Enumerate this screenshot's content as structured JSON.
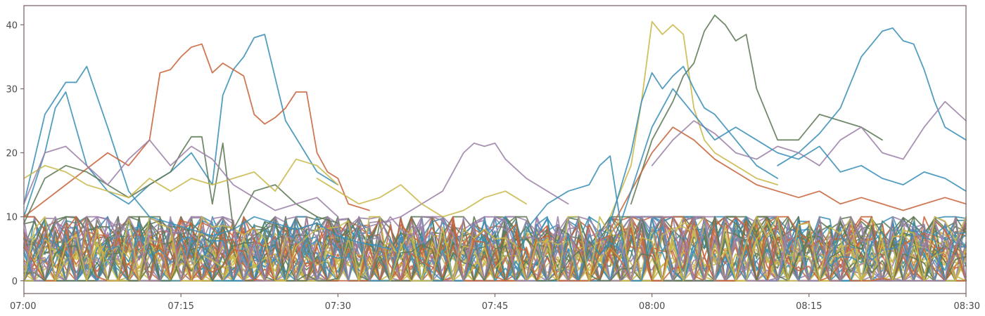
{
  "chart_data": {
    "type": "line",
    "title": "",
    "xlabel": "",
    "ylabel": "",
    "x_unit": "time (HH:MM)",
    "x_range": [
      "07:00",
      "08:30"
    ],
    "ylim": [
      -2,
      43
    ],
    "grid": false,
    "legend": "none",
    "x_ticks": [
      "07:00",
      "07:15",
      "07:30",
      "07:45",
      "08:00",
      "08:15",
      "08:30"
    ],
    "y_ticks": [
      0,
      10,
      20,
      30,
      40
    ],
    "colors": {
      "blue": "#3a8fb7",
      "orange": "#c8643a",
      "olive": "#5f7a55",
      "yellow": "#c9b84a",
      "purple": "#9c82a8",
      "axis": "#7f6a6a"
    },
    "background_noise": {
      "description_count": 55,
      "range": [
        0,
        10
      ]
    },
    "series": [
      {
        "color": "blue",
        "x": [
          "07:00",
          "07:02",
          "07:04",
          "07:05",
          "07:06",
          "07:08",
          "07:10",
          "07:12",
          "07:14",
          "07:16",
          "07:18",
          "07:20",
          "07:22",
          "07:24",
          "07:26",
          "07:28",
          "07:30",
          "07:32",
          "07:35"
        ],
        "values": [
          12,
          26,
          31,
          31,
          33.5,
          24,
          14,
          10,
          9,
          8,
          7,
          8,
          10,
          9,
          8,
          9,
          7,
          6,
          5
        ]
      },
      {
        "color": "blue",
        "x": [
          "07:00",
          "07:02",
          "07:03",
          "07:04",
          "07:06",
          "07:08",
          "07:10",
          "07:12",
          "07:14",
          "07:16",
          "07:18",
          "07:19",
          "07:20",
          "07:21",
          "07:22",
          "07:23",
          "07:25",
          "07:28",
          "07:30"
        ],
        "values": [
          10,
          20,
          27,
          29.5,
          18,
          14,
          12,
          15,
          17,
          20,
          15,
          29,
          33,
          35,
          38,
          38.5,
          25,
          17,
          15
        ]
      },
      {
        "color": "orange",
        "x": [
          "07:00",
          "07:04",
          "07:08",
          "07:10",
          "07:12",
          "07:13",
          "07:14",
          "07:15",
          "07:16",
          "07:17",
          "07:18",
          "07:19",
          "07:20",
          "07:21",
          "07:22",
          "07:23",
          "07:24",
          "07:25",
          "07:26",
          "07:27",
          "07:28",
          "07:29",
          "07:30",
          "07:31",
          "07:33"
        ],
        "values": [
          10,
          15,
          20,
          18,
          22,
          32.5,
          33,
          35,
          36.5,
          37,
          32.5,
          34,
          33,
          32,
          26,
          24.5,
          25.5,
          27,
          29.5,
          29.5,
          20,
          17,
          16,
          12,
          11
        ]
      },
      {
        "color": "purple",
        "x": [
          "07:32",
          "07:34",
          "07:36",
          "07:38",
          "07:40",
          "07:42",
          "07:43",
          "07:44",
          "07:45",
          "07:46",
          "07:48",
          "07:50",
          "07:52"
        ],
        "values": [
          8,
          9,
          10,
          12,
          14,
          20,
          21.5,
          21,
          21.5,
          19,
          16,
          14,
          12
        ]
      },
      {
        "color": "yellow",
        "x": [
          "07:28",
          "07:30",
          "07:32",
          "07:34",
          "07:36",
          "07:38",
          "07:40",
          "07:42",
          "07:44",
          "07:46",
          "07:48"
        ],
        "values": [
          16,
          14,
          12,
          13,
          15,
          12,
          10,
          11,
          13,
          14,
          12
        ]
      },
      {
        "color": "yellow",
        "x": [
          "07:56",
          "07:58",
          "07:59",
          "08:00",
          "08:01",
          "08:02",
          "08:03",
          "08:04",
          "08:05",
          "08:06",
          "08:08",
          "08:10",
          "08:12"
        ],
        "values": [
          10,
          18,
          28,
          40.5,
          38.5,
          40,
          38.5,
          27,
          22,
          20,
          18,
          16,
          15
        ]
      },
      {
        "color": "olive",
        "x": [
          "07:58",
          "08:00",
          "08:02",
          "08:03",
          "08:04",
          "08:05",
          "08:06",
          "08:07",
          "08:08",
          "08:09",
          "08:10",
          "08:12",
          "08:14",
          "08:16",
          "08:18",
          "08:20",
          "08:22"
        ],
        "values": [
          12,
          22,
          28,
          32,
          34,
          39,
          41.5,
          40,
          37.5,
          38.5,
          30,
          22,
          22,
          26,
          25,
          24,
          22
        ]
      },
      {
        "color": "blue",
        "x": [
          "08:12",
          "08:14",
          "08:16",
          "08:18",
          "08:20",
          "08:21",
          "08:22",
          "08:23",
          "08:24",
          "08:25",
          "08:26",
          "08:27",
          "08:28",
          "08:30"
        ],
        "values": [
          18,
          20,
          23,
          27,
          35,
          37,
          39,
          39.5,
          37.5,
          37,
          33,
          28,
          24,
          22
        ]
      },
      {
        "color": "blue",
        "x": [
          "07:56",
          "07:58",
          "07:59",
          "08:00",
          "08:01",
          "08:02",
          "08:03",
          "08:04",
          "08:05",
          "08:06",
          "08:08",
          "08:10",
          "08:12"
        ],
        "values": [
          9,
          20,
          28,
          32.5,
          30,
          32,
          33.5,
          30,
          27,
          26,
          22,
          18,
          16
        ]
      },
      {
        "color": "orange",
        "x": [
          "07:56",
          "07:58",
          "08:00",
          "08:02",
          "08:04",
          "08:06",
          "08:08",
          "08:10",
          "08:12",
          "08:14",
          "08:16",
          "08:18",
          "08:20",
          "08:22",
          "08:24",
          "08:26",
          "08:28",
          "08:30"
        ],
        "values": [
          8,
          14,
          20,
          24,
          22,
          19,
          17,
          15,
          14,
          13,
          14,
          12,
          13,
          12,
          11,
          12,
          13,
          12
        ]
      },
      {
        "color": "purple",
        "x": [
          "08:00",
          "08:02",
          "08:04",
          "08:06",
          "08:08",
          "08:10",
          "08:12",
          "08:14",
          "08:16",
          "08:18",
          "08:20",
          "08:22",
          "08:24",
          "08:26",
          "08:28",
          "08:30"
        ],
        "values": [
          18,
          22,
          25,
          23,
          20,
          19,
          21,
          20,
          18,
          22,
          24,
          20,
          19,
          24,
          28,
          25
        ]
      },
      {
        "color": "olive",
        "x": [
          "07:00",
          "07:02",
          "07:04",
          "07:06",
          "07:08",
          "07:10",
          "07:12",
          "07:14",
          "07:15",
          "07:16",
          "07:17",
          "07:18",
          "07:19",
          "07:20",
          "07:22",
          "07:24",
          "07:26",
          "07:28",
          "07:30"
        ],
        "values": [
          9,
          16,
          18,
          17,
          15,
          13,
          15,
          17,
          20,
          22.5,
          22.5,
          12,
          21.5,
          8,
          14,
          15,
          12,
          10,
          9
        ]
      },
      {
        "color": "yellow",
        "x": [
          "07:00",
          "07:02",
          "07:04",
          "07:06",
          "07:08",
          "07:10",
          "07:12",
          "07:14",
          "07:16",
          "07:18",
          "07:20",
          "07:22",
          "07:24",
          "07:26",
          "07:28",
          "07:30"
        ],
        "values": [
          16,
          18,
          17,
          15,
          14,
          13,
          16,
          14,
          16,
          15,
          16,
          17,
          14,
          19,
          18,
          15
        ]
      },
      {
        "color": "purple",
        "x": [
          "07:00",
          "07:02",
          "07:04",
          "07:06",
          "07:08",
          "07:10",
          "07:12",
          "07:14",
          "07:16",
          "07:18",
          "07:20",
          "07:22",
          "07:24",
          "07:26",
          "07:28",
          "07:30"
        ],
        "values": [
          12,
          20,
          21,
          18,
          15,
          19,
          22,
          18,
          21,
          19,
          15,
          13,
          11,
          12,
          13,
          10
        ]
      },
      {
        "color": "blue",
        "x": [
          "07:48",
          "07:50",
          "07:52",
          "07:54",
          "07:55",
          "07:56",
          "07:57",
          "07:58",
          "08:00",
          "08:02",
          "08:04",
          "08:06",
          "08:08",
          "08:10",
          "08:12",
          "08:14",
          "08:16",
          "08:18",
          "08:20",
          "08:22",
          "08:24",
          "08:26",
          "08:28",
          "08:30"
        ],
        "values": [
          8,
          12,
          14,
          15,
          18,
          19.5,
          9,
          14,
          24,
          30,
          26,
          22,
          24,
          22,
          20,
          19,
          21,
          17,
          18,
          16,
          15,
          17,
          16,
          14
        ]
      }
    ]
  }
}
